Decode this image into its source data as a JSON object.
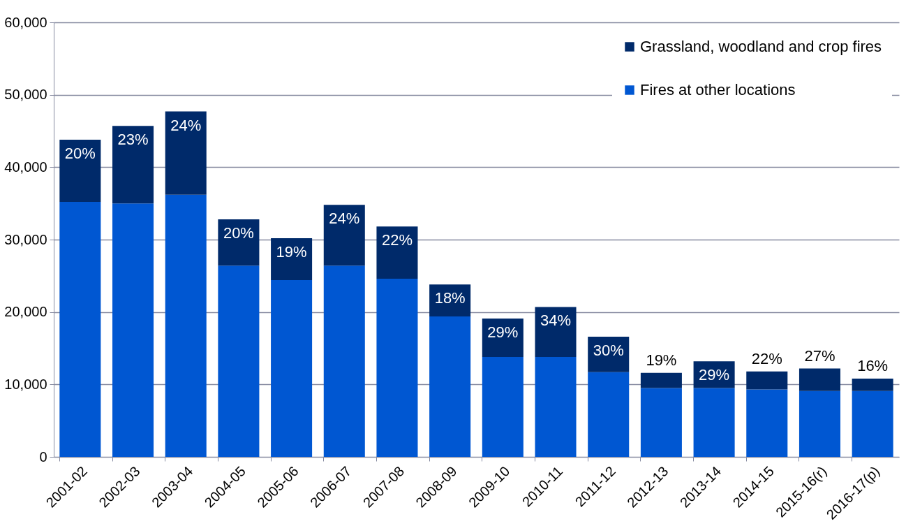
{
  "chart_data": {
    "type": "bar",
    "stacked": true,
    "categories": [
      "2001-02",
      "2002-03",
      "2003-04",
      "2004-05",
      "2005-06",
      "2006-07",
      "2007-08",
      "2008-09",
      "2009-10",
      "2010-11",
      "2011-12",
      "2012-13",
      "2013-14",
      "2014-15",
      "2015-16(r)",
      "2016-17(p)"
    ],
    "series": [
      {
        "name": "Fires at other locations",
        "color": "#0057d2",
        "values": [
          35200,
          35000,
          36200,
          26400,
          24400,
          26400,
          24600,
          19400,
          13800,
          13800,
          11700,
          9500,
          9500,
          9300,
          9100,
          9100
        ]
      },
      {
        "name": "Grassland, woodland and crop fires",
        "color": "#002a6a",
        "values": [
          8600,
          10700,
          11500,
          6400,
          5800,
          8400,
          7200,
          4400,
          5300,
          6900,
          4900,
          2100,
          3700,
          2500,
          3100,
          1700
        ]
      }
    ],
    "annotations": [
      {
        "text": "20%",
        "x": "2001-02",
        "y": 43800
      },
      {
        "text": "23%",
        "x": "2002-03",
        "y": 45700
      },
      {
        "text": "24%",
        "x": "2003-04",
        "y": 47700
      },
      {
        "text": "20%",
        "x": "2004-05",
        "y": 32800
      },
      {
        "text": "19%",
        "x": "2005-06",
        "y": 30200
      },
      {
        "text": "24%",
        "x": "2006-07",
        "y": 34800
      },
      {
        "text": "22%",
        "x": "2007-08",
        "y": 31800
      },
      {
        "text": "18%",
        "x": "2008-09",
        "y": 23800
      },
      {
        "text": "29%",
        "x": "2009-10",
        "y": 19100
      },
      {
        "text": "34%",
        "x": "2010-11",
        "y": 20700
      },
      {
        "text": "30%",
        "x": "2011-12",
        "y": 16600
      },
      {
        "text": "19%",
        "x": "2012-13",
        "y": 11600
      },
      {
        "text": "29%",
        "x": "2013-14",
        "y": 13200
      },
      {
        "text": "22%",
        "x": "2014-15",
        "y": 11800
      },
      {
        "text": "27%",
        "x": "2015-16(r)",
        "y": 12200
      },
      {
        "text": "16%",
        "x": "2016-17(p)",
        "y": 10800
      }
    ],
    "ylim": [
      0,
      60000
    ],
    "yticks": [
      {
        "value": 0,
        "label": "0"
      },
      {
        "value": 10000,
        "label": "10,000"
      },
      {
        "value": 20000,
        "label": "20,000"
      },
      {
        "value": 30000,
        "label": "30,000"
      },
      {
        "value": 40000,
        "label": "40,000"
      },
      {
        "value": 50000,
        "label": "50,000"
      },
      {
        "value": 60000,
        "label": "60,000"
      }
    ],
    "grid": "y",
    "legend": "top right"
  }
}
